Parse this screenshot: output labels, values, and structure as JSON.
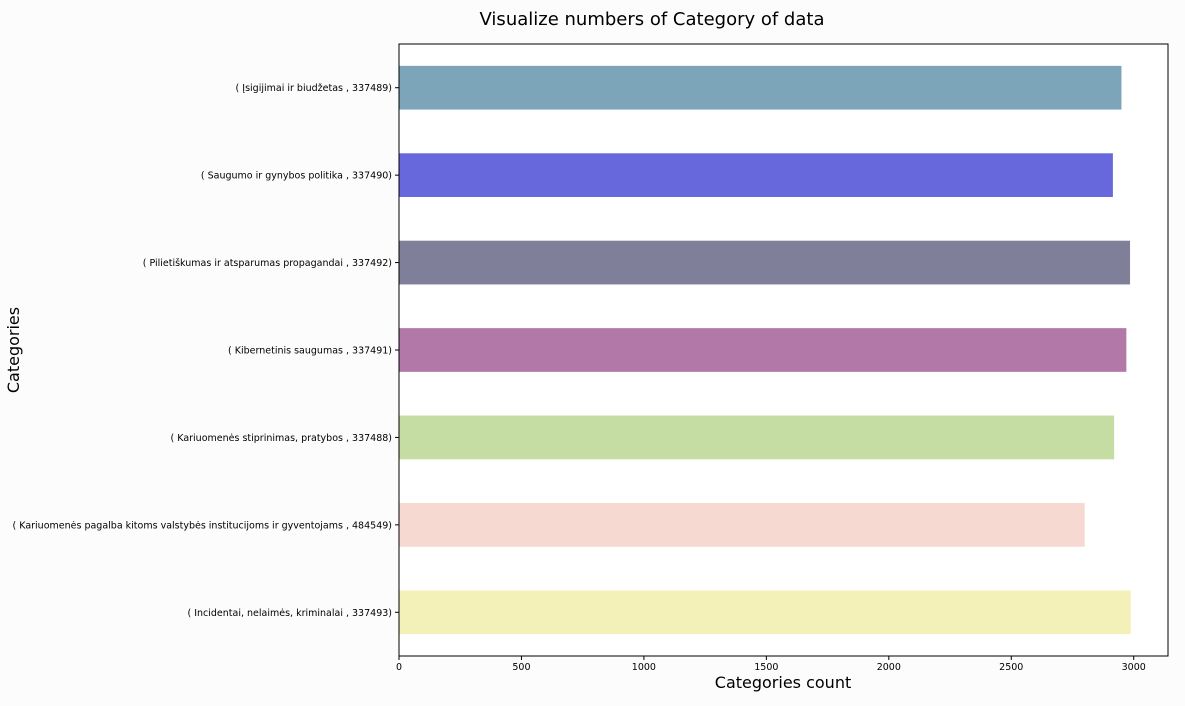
{
  "chart_data": {
    "type": "bar",
    "orientation": "horizontal",
    "title": "Visualize numbers of Category of data",
    "xlabel": "Categories count",
    "ylabel": "Categories",
    "xlim": [
      0,
      3140
    ],
    "xticks": [
      0,
      500,
      1000,
      1500,
      2000,
      2500,
      3000
    ],
    "grid": false,
    "categories": [
      "( Įsigijimai ir biudžetas , 337489)",
      "( Saugumo ir gynybos politika , 337490)",
      "( Pilietiškumas ir atsparumas propagandai , 337492)",
      "( Kibernetinis saugumas , 337491)",
      "( Kariuomenės stiprinimas, pratybos , 337488)",
      "( Kariuomenės pagalba kitoms valstybės institucijoms ir gyventojams , 484549)",
      "( Incidentai, nelaimės, kriminalai , 337493)"
    ],
    "values": [
      2950,
      2915,
      2985,
      2970,
      2920,
      2800,
      2988
    ],
    "colors": [
      "#7da5b9",
      "#6868dd",
      "#7f7f9a",
      "#b178a8",
      "#c5dda2",
      "#f6dad1",
      "#f4f1b8"
    ]
  }
}
